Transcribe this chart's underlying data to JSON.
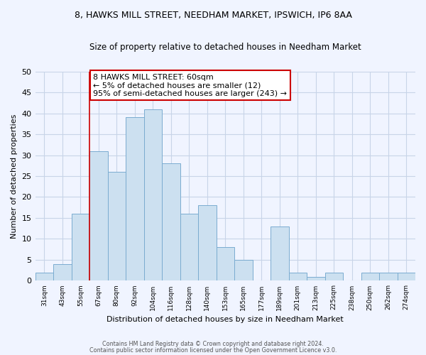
{
  "title1": "8, HAWKS MILL STREET, NEEDHAM MARKET, IPSWICH, IP6 8AA",
  "title2": "Size of property relative to detached houses in Needham Market",
  "xlabel": "Distribution of detached houses by size in Needham Market",
  "ylabel": "Number of detached properties",
  "bin_labels": [
    "31sqm",
    "43sqm",
    "55sqm",
    "67sqm",
    "80sqm",
    "92sqm",
    "104sqm",
    "116sqm",
    "128sqm",
    "140sqm",
    "153sqm",
    "165sqm",
    "177sqm",
    "189sqm",
    "201sqm",
    "213sqm",
    "225sqm",
    "238sqm",
    "250sqm",
    "262sqm",
    "274sqm"
  ],
  "bar_heights": [
    2,
    4,
    16,
    31,
    26,
    39,
    41,
    28,
    16,
    18,
    8,
    5,
    0,
    13,
    2,
    1,
    2,
    0,
    2,
    2,
    2
  ],
  "bar_color": "#cce0f0",
  "bar_edge_color": "#7aacd0",
  "vline_color": "#cc0000",
  "annotation_line1": "8 HAWKS MILL STREET: 60sqm",
  "annotation_line2": "← 5% of detached houses are smaller (12)",
  "annotation_line3": "95% of semi-detached houses are larger (243) →",
  "annotation_box_color": "#ffffff",
  "annotation_box_edge": "#cc0000",
  "ylim": [
    0,
    50
  ],
  "yticks": [
    0,
    5,
    10,
    15,
    20,
    25,
    30,
    35,
    40,
    45,
    50
  ],
  "footer1": "Contains HM Land Registry data © Crown copyright and database right 2024.",
  "footer2": "Contains public sector information licensed under the Open Government Licence v3.0.",
  "bg_color": "#f0f4ff",
  "grid_color": "#c8d4e8"
}
